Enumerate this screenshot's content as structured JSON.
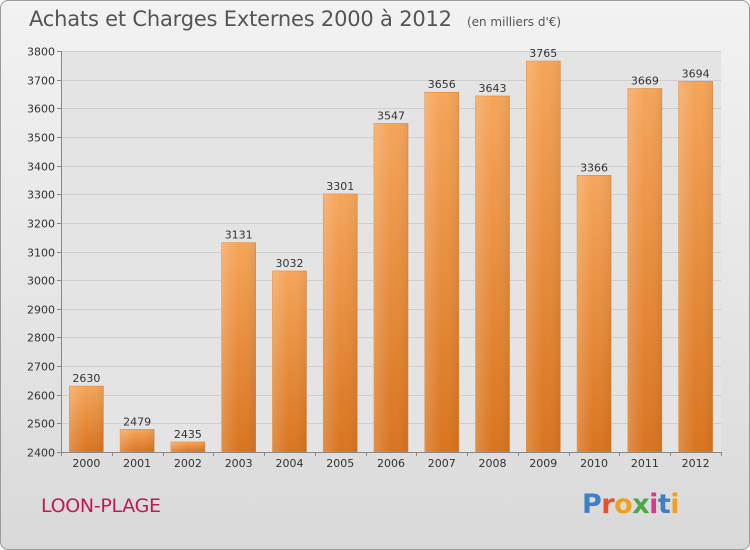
{
  "header": {
    "title": "Achats et Charges Externes 2000 à 2012",
    "unit": "(en milliers d'€)"
  },
  "footer": {
    "location": "LOON-PLAGE",
    "logo_text": "Proxiti",
    "logo_colors": [
      "#3f7fc4",
      "#e8502b",
      "#f0a020",
      "#4aa84a",
      "#d63a8a",
      "#3f7fc4",
      "#f0a020"
    ]
  },
  "chart_data": {
    "type": "bar",
    "categories": [
      "2000",
      "2001",
      "2002",
      "2003",
      "2004",
      "2005",
      "2006",
      "2007",
      "2008",
      "2009",
      "2010",
      "2011",
      "2012"
    ],
    "values": [
      2630,
      2479,
      2435,
      3131,
      3032,
      3301,
      3547,
      3656,
      3643,
      3765,
      3366,
      3669,
      3694
    ],
    "ylim": [
      2400,
      3800
    ],
    "yticks": [
      2400,
      2500,
      2600,
      2700,
      2800,
      2900,
      3000,
      3100,
      3200,
      3300,
      3400,
      3500,
      3600,
      3700,
      3800
    ],
    "grid": true,
    "bar_color_top": "#f5a55a",
    "bar_color_bottom": "#d9741f"
  }
}
